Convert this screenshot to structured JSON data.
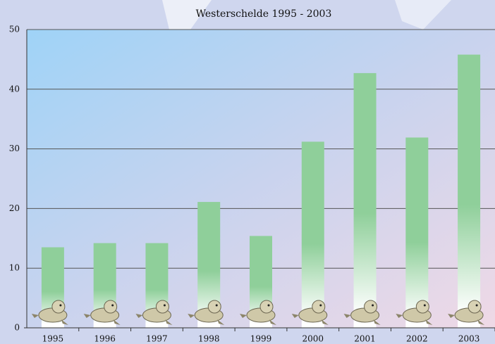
{
  "chart_data": {
    "type": "bar",
    "title": "Westerschelde 1995 - 2003",
    "categories": [
      "1995",
      "1996",
      "1997",
      "1998",
      "1999",
      "2000",
      "2001",
      "2002",
      "2003"
    ],
    "values": [
      13.5,
      14.2,
      14.2,
      21.1,
      15.4,
      31.2,
      42.7,
      31.9,
      45.8
    ],
    "color": "#8fcf9a",
    "ylim": [
      0,
      50
    ],
    "yticks": [
      0,
      10,
      20,
      30,
      40,
      50
    ],
    "grid": true
  }
}
